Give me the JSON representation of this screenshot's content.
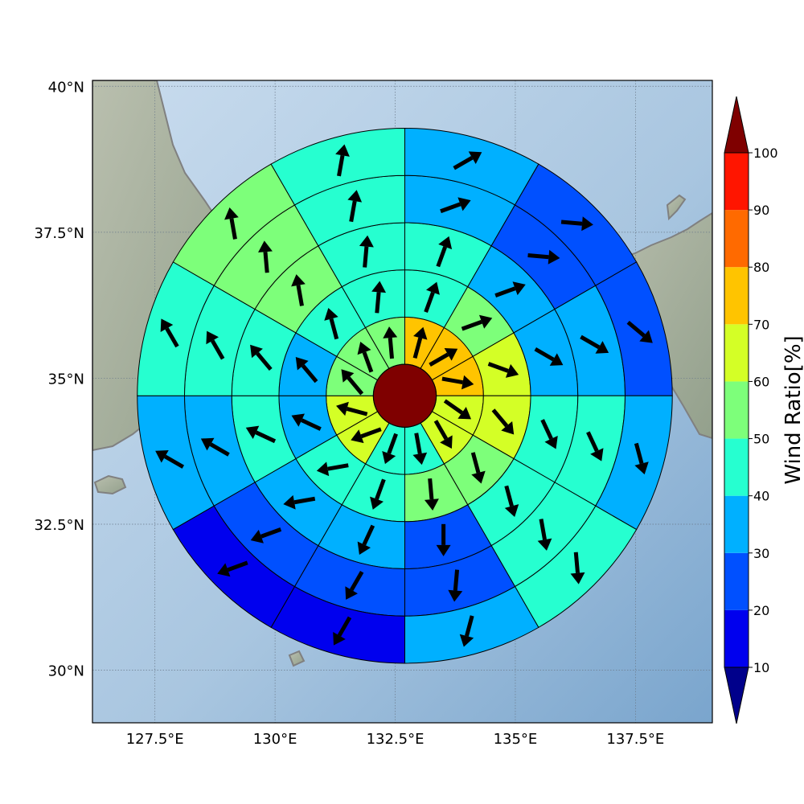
{
  "colors": {
    "ocean": "#9dbad8",
    "land": "#a7b0a0",
    "coast": "#808080",
    "grid": "#6b7a8a",
    "sector_edge": "#000000",
    "arrow": "#000000"
  },
  "axes": {
    "lon_ticks": [
      "127.5°E",
      "130°E",
      "132.5°E",
      "135°E",
      "137.5°E"
    ],
    "lat_ticks": [
      "30°N",
      "32.5°N",
      "35°N",
      "37.5°N",
      "40°N"
    ]
  },
  "colorbar": {
    "title": "Wind Ratio[%]",
    "tick_labels": [
      "10",
      "20",
      "30",
      "40",
      "50",
      "60",
      "70",
      "80",
      "90",
      "100"
    ],
    "under_color": "#00008b",
    "over_color": "#7f0000",
    "bins": [
      {
        "min": 10,
        "max": 20,
        "color": "#0000ee"
      },
      {
        "min": 20,
        "max": 30,
        "color": "#0050ff"
      },
      {
        "min": 30,
        "max": 40,
        "color": "#00b0ff"
      },
      {
        "min": 40,
        "max": 50,
        "color": "#26ffd0"
      },
      {
        "min": 50,
        "max": 60,
        "color": "#7dff7a"
      },
      {
        "min": 60,
        "max": 70,
        "color": "#d4ff26"
      },
      {
        "min": 70,
        "max": 80,
        "color": "#ffc400"
      },
      {
        "min": 80,
        "max": 90,
        "color": "#ff6a00"
      },
      {
        "min": 90,
        "max": 100,
        "color": "#ff1500"
      }
    ]
  },
  "chart_data": {
    "type": "heatmap",
    "xlabel": "",
    "ylabel": "",
    "xlim": [
      126.2,
      139.1
    ],
    "ylim": [
      29.1,
      40.1
    ],
    "center": {
      "lon": 132.7,
      "lat": 34.7
    },
    "center_value": 100,
    "rings": [
      {
        "ratios": [
          75,
          75,
          75,
          65,
          65,
          45,
          45,
          65,
          65,
          55,
          55,
          55
        ]
      },
      {
        "ratios": [
          45,
          55,
          65,
          65,
          55,
          55,
          45,
          45,
          35,
          35,
          45,
          45
        ]
      },
      {
        "ratios": [
          45,
          35,
          35,
          45,
          45,
          25,
          35,
          35,
          45,
          45,
          55,
          45
        ]
      },
      {
        "ratios": [
          35,
          25,
          35,
          45,
          45,
          25,
          25,
          25,
          35,
          45,
          55,
          45
        ]
      },
      {
        "ratios": [
          35,
          25,
          25,
          35,
          45,
          35,
          15,
          15,
          35,
          45,
          55,
          45
        ]
      }
    ],
    "sector_directions_deg": [
      [
        15,
        60,
        100,
        125,
        150,
        170,
        200,
        250,
        285,
        320,
        340,
        355
      ],
      [
        20,
        70,
        110,
        140,
        165,
        175,
        200,
        260,
        295,
        320,
        345,
        5
      ],
      [
        20,
        70,
        120,
        155,
        165,
        180,
        205,
        260,
        295,
        320,
        350,
        5
      ],
      [
        70,
        95,
        120,
        155,
        170,
        185,
        210,
        250,
        300,
        330,
        355,
        10
      ],
      [
        60,
        95,
        130,
        165,
        175,
        195,
        210,
        250,
        300,
        330,
        350,
        10
      ]
    ],
    "arrow_units": "meteorological degrees (direction the arrow points, clockwise from north)"
  }
}
